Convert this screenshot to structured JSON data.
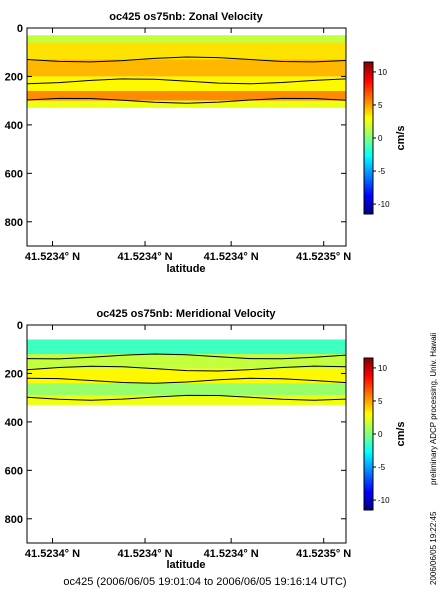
{
  "chart_data": [
    {
      "type": "heatmap",
      "title": "oc425 os75nb: Zonal Velocity",
      "xlabel": "latitude",
      "ylabel": "",
      "x_tick_labels": [
        "41.5234° N",
        "41.5234° N",
        "41.5234° N",
        "41.5235° N"
      ],
      "y_ticks": [
        0,
        200,
        400,
        600,
        800
      ],
      "ylim": [
        900,
        0
      ],
      "data_depth_range": [
        30,
        330
      ],
      "colorbar": {
        "label": "cm/s",
        "ticks": [
          10,
          5,
          0,
          -5,
          -10
        ],
        "range": [
          -11.5,
          11.5
        ],
        "colormap": "jet"
      },
      "contours_depth_m": [
        130,
        220,
        300
      ],
      "velocity_bands": [
        {
          "depth_range": [
            30,
            60
          ],
          "value": 1.5
        },
        {
          "depth_range": [
            60,
            130
          ],
          "value": 3.5
        },
        {
          "depth_range": [
            130,
            200
          ],
          "value": 4.5
        },
        {
          "depth_range": [
            200,
            260
          ],
          "value": 3.0
        },
        {
          "depth_range": [
            260,
            300
          ],
          "value": 5.5
        },
        {
          "depth_range": [
            300,
            330
          ],
          "value": 2.5
        }
      ],
      "grid": false
    },
    {
      "type": "heatmap",
      "title": "oc425 os75nb: Meridional Velocity",
      "xlabel": "latitude",
      "ylabel": "",
      "x_tick_labels": [
        "41.5234° N",
        "41.5234° N",
        "41.5234° N",
        "41.5235° N"
      ],
      "y_ticks": [
        0,
        200,
        400,
        600,
        800
      ],
      "ylim": [
        900,
        0
      ],
      "data_depth_range": [
        60,
        330
      ],
      "colorbar": {
        "label": "cm/s",
        "ticks": [
          10,
          5,
          0,
          -5,
          -10
        ],
        "range": [
          -11.5,
          11.5
        ],
        "colormap": "jet"
      },
      "contours_depth_m": [
        130,
        180,
        230,
        300
      ],
      "velocity_bands": [
        {
          "depth_range": [
            60,
            120
          ],
          "value": -1.5
        },
        {
          "depth_range": [
            120,
            180
          ],
          "value": 1.5
        },
        {
          "depth_range": [
            180,
            240
          ],
          "value": 3.0
        },
        {
          "depth_range": [
            240,
            290
          ],
          "value": 0.5
        },
        {
          "depth_range": [
            290,
            330
          ],
          "value": 2.5
        }
      ],
      "grid": false
    }
  ],
  "footer": {
    "cruise_time": "oc425 (2006/06/05 19:01:04 to 2006/06/05 19:16:14 UTC)",
    "side_note": "preliminary ADCP processing,   Univ. Hawaii",
    "side_timestamp": "2006/06/05 19:22:45"
  }
}
